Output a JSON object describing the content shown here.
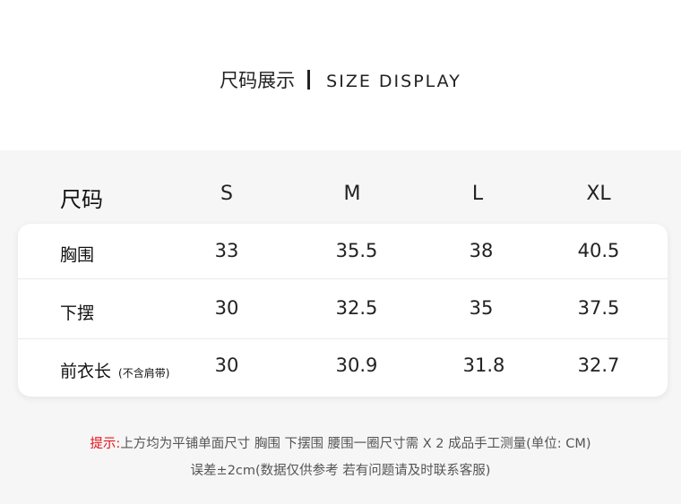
{
  "title": {
    "zh": "尺码展示",
    "en": "SIZE DISPLAY"
  },
  "table": {
    "corner": "尺码",
    "sizes": [
      "S",
      "M",
      "L",
      "XL"
    ],
    "rows": [
      {
        "label": "胸围",
        "note": "",
        "values": [
          "33",
          "35.5",
          "38",
          "40.5"
        ]
      },
      {
        "label": "下摆",
        "note": "",
        "values": [
          "30",
          "32.5",
          "35",
          "37.5"
        ]
      },
      {
        "label": "前衣长",
        "note": "(不含肩带)",
        "values": [
          "30",
          "30.9",
          "31.8",
          "32.7"
        ]
      }
    ]
  },
  "notes": {
    "prefix": "提示:",
    "line1": "上方均为平铺单面尺寸  胸围  下摆围  腰围一圈尺寸需 X 2   成品手工测量(单位: CM)",
    "line2": "误差±2cm(数据仅供参考  若有问题请及时联系客服)"
  },
  "colors": {
    "accent": "#e8141c",
    "background": "#f6f6f6"
  }
}
